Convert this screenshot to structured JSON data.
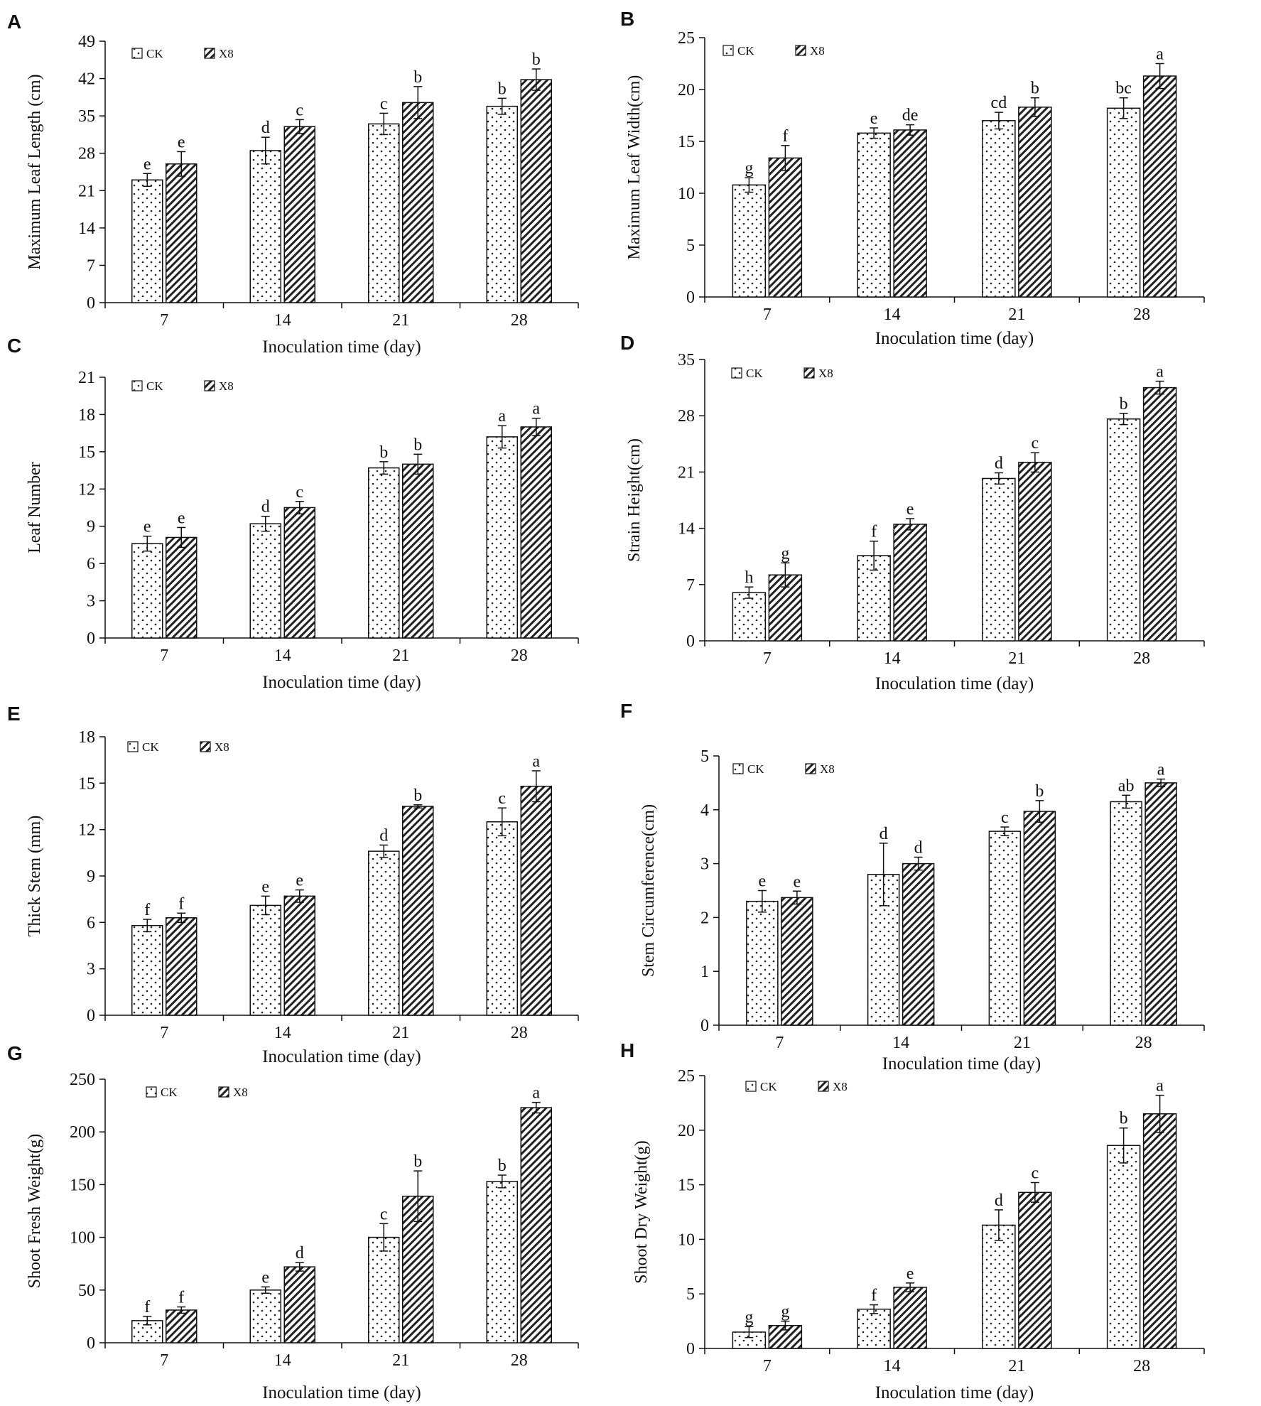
{
  "colors": {
    "axis": "#111111",
    "bar_stroke": "#111111",
    "ck_fill": "#ffffff",
    "dot": "#222222",
    "hatch": "#222222",
    "background": "#ffffff"
  },
  "icons": {
    "ck_pattern": "dotted-fill-swatch",
    "x8_pattern": "diagonal-hatch-swatch"
  },
  "chart_data": [
    {
      "panel": "A",
      "type": "bar",
      "categories": [
        "7",
        "14",
        "21",
        "28"
      ],
      "xlabel": "Inoculation time (day)",
      "ylabel": "Maximum Leaf Length (cm)",
      "ylim": [
        0,
        49
      ],
      "yticks": [
        "0",
        "7",
        "14",
        "21",
        "28",
        "35",
        "42",
        "49"
      ],
      "legend": [
        "CK",
        "X8"
      ],
      "series": [
        {
          "name": "CK",
          "values": [
            23,
            28.5,
            33.5,
            36.8
          ],
          "errors": [
            1.2,
            2.5,
            2.0,
            1.5
          ],
          "labels": [
            "e",
            "d",
            "c",
            "b"
          ]
        },
        {
          "name": "X8",
          "values": [
            26,
            33,
            37.5,
            41.8
          ],
          "errors": [
            2.3,
            1.3,
            3.0,
            2.0
          ],
          "labels": [
            "e",
            "c",
            "b",
            "b"
          ]
        }
      ]
    },
    {
      "panel": "B",
      "type": "bar",
      "categories": [
        "7",
        "14",
        "21",
        "28"
      ],
      "xlabel": "Inoculation time (day)",
      "ylabel": "Maximum Leaf Width(cm)",
      "ylim": [
        0,
        25
      ],
      "yticks": [
        "0",
        "5",
        "10",
        "15",
        "20",
        "25"
      ],
      "legend": [
        "CK",
        "X8"
      ],
      "series": [
        {
          "name": "CK",
          "values": [
            10.8,
            15.8,
            17,
            18.2
          ],
          "errors": [
            0.7,
            0.5,
            0.8,
            1.0
          ],
          "labels": [
            "g",
            "e",
            "cd",
            "bc"
          ]
        },
        {
          "name": "X8",
          "values": [
            13.4,
            16.1,
            18.3,
            21.3
          ],
          "errors": [
            1.2,
            0.5,
            0.9,
            1.2
          ],
          "labels": [
            "f",
            "de",
            "b",
            "a"
          ]
        }
      ]
    },
    {
      "panel": "C",
      "type": "bar",
      "categories": [
        "7",
        "14",
        "21",
        "28"
      ],
      "xlabel": "Inoculation time (day)",
      "ylabel": "Leaf Number",
      "ylim": [
        0,
        21
      ],
      "yticks": [
        "0",
        "3",
        "6",
        "9",
        "12",
        "15",
        "18",
        "21"
      ],
      "legend": [
        "CK",
        "X8"
      ],
      "series": [
        {
          "name": "CK",
          "values": [
            7.6,
            9.2,
            13.7,
            16.2
          ],
          "errors": [
            0.6,
            0.6,
            0.5,
            0.9
          ],
          "labels": [
            "e",
            "d",
            "b",
            "a"
          ]
        },
        {
          "name": "X8",
          "values": [
            8.1,
            10.5,
            14,
            17
          ],
          "errors": [
            0.8,
            0.5,
            0.8,
            0.7
          ],
          "labels": [
            "e",
            "c",
            "b",
            "a"
          ]
        }
      ]
    },
    {
      "panel": "D",
      "type": "bar",
      "categories": [
        "7",
        "14",
        "21",
        "28"
      ],
      "xlabel": "Inoculation time (day)",
      "ylabel": "Strain Height(cm)",
      "ylim": [
        0,
        35
      ],
      "yticks": [
        "0",
        "7",
        "14",
        "21",
        "28",
        "35"
      ],
      "legend": [
        "CK",
        "X8"
      ],
      "series": [
        {
          "name": "CK",
          "values": [
            6,
            10.6,
            20.2,
            27.6
          ],
          "errors": [
            0.7,
            1.8,
            0.7,
            0.7
          ],
          "labels": [
            "h",
            "f",
            "d",
            "b"
          ]
        },
        {
          "name": "X8",
          "values": [
            8.2,
            14.5,
            22.2,
            31.5
          ],
          "errors": [
            1.5,
            0.7,
            1.2,
            0.8
          ],
          "labels": [
            "g",
            "e",
            "c",
            "a"
          ]
        }
      ]
    },
    {
      "panel": "E",
      "type": "bar",
      "categories": [
        "7",
        "14",
        "21",
        "28"
      ],
      "xlabel": "Inoculation time (day)",
      "ylabel": "Thick Stem (mm)",
      "ylim": [
        0,
        18
      ],
      "yticks": [
        "0",
        "3",
        "6",
        "9",
        "12",
        "15",
        "18"
      ],
      "legend": [
        "CK",
        "X8"
      ],
      "series": [
        {
          "name": "CK",
          "values": [
            5.8,
            7.1,
            10.6,
            12.5
          ],
          "errors": [
            0.4,
            0.6,
            0.4,
            0.9
          ],
          "labels": [
            "f",
            "e",
            "d",
            "c"
          ]
        },
        {
          "name": "X8",
          "values": [
            6.3,
            7.7,
            13.5,
            14.8
          ],
          "errors": [
            0.3,
            0.4,
            0.1,
            1.0
          ],
          "labels": [
            "f",
            "e",
            "b",
            "a"
          ]
        }
      ]
    },
    {
      "panel": "F",
      "type": "bar",
      "categories": [
        "7",
        "14",
        "21",
        "28"
      ],
      "xlabel": "Inoculation time (day)",
      "ylabel": "Stem Circumference(cm)",
      "ylim": [
        0,
        5
      ],
      "yticks": [
        "0",
        "1",
        "2",
        "3",
        "4",
        "5"
      ],
      "legend": [
        "CK",
        "X8"
      ],
      "series": [
        {
          "name": "CK",
          "values": [
            2.3,
            2.8,
            3.6,
            4.15
          ],
          "errors": [
            0.2,
            0.58,
            0.08,
            0.12
          ],
          "labels": [
            "e",
            "d",
            "c",
            "ab"
          ]
        },
        {
          "name": "X8",
          "values": [
            2.37,
            3,
            3.97,
            4.5
          ],
          "errors": [
            0.12,
            0.12,
            0.2,
            0.07
          ],
          "labels": [
            "e",
            "d",
            "b",
            "a"
          ]
        }
      ]
    },
    {
      "panel": "G",
      "type": "bar",
      "categories": [
        "7",
        "14",
        "21",
        "28"
      ],
      "xlabel": "Inoculation time (day)",
      "ylabel": "Shoot Fresh Weight(g)",
      "ylim": [
        0,
        250
      ],
      "yticks": [
        "0",
        "50",
        "100",
        "150",
        "200",
        "250"
      ],
      "legend": [
        "CK",
        "X8"
      ],
      "series": [
        {
          "name": "CK",
          "values": [
            21,
            50,
            100,
            153
          ],
          "errors": [
            4,
            3,
            13,
            6
          ],
          "labels": [
            "f",
            "e",
            "c",
            "b"
          ]
        },
        {
          "name": "X8",
          "values": [
            31,
            72,
            139,
            223
          ],
          "errors": [
            3,
            4,
            24,
            5
          ],
          "labels": [
            "f",
            "d",
            "b",
            "a"
          ]
        }
      ]
    },
    {
      "panel": "H",
      "type": "bar",
      "categories": [
        "7",
        "14",
        "21",
        "28"
      ],
      "xlabel": "Inoculation time (day)",
      "ylabel": "Shoot Dry Weight(g)",
      "ylim": [
        0,
        25
      ],
      "yticks": [
        "0",
        "5",
        "10",
        "15",
        "20",
        "25"
      ],
      "legend": [
        "CK",
        "X8"
      ],
      "series": [
        {
          "name": "CK",
          "values": [
            1.5,
            3.6,
            11.3,
            18.6
          ],
          "errors": [
            0.5,
            0.4,
            1.4,
            1.6
          ],
          "labels": [
            "g",
            "f",
            "d",
            "b"
          ]
        },
        {
          "name": "X8",
          "values": [
            2.1,
            5.6,
            14.3,
            21.5
          ],
          "errors": [
            0.4,
            0.4,
            0.9,
            1.7
          ],
          "labels": [
            "g",
            "e",
            "c",
            "a"
          ]
        }
      ]
    }
  ]
}
